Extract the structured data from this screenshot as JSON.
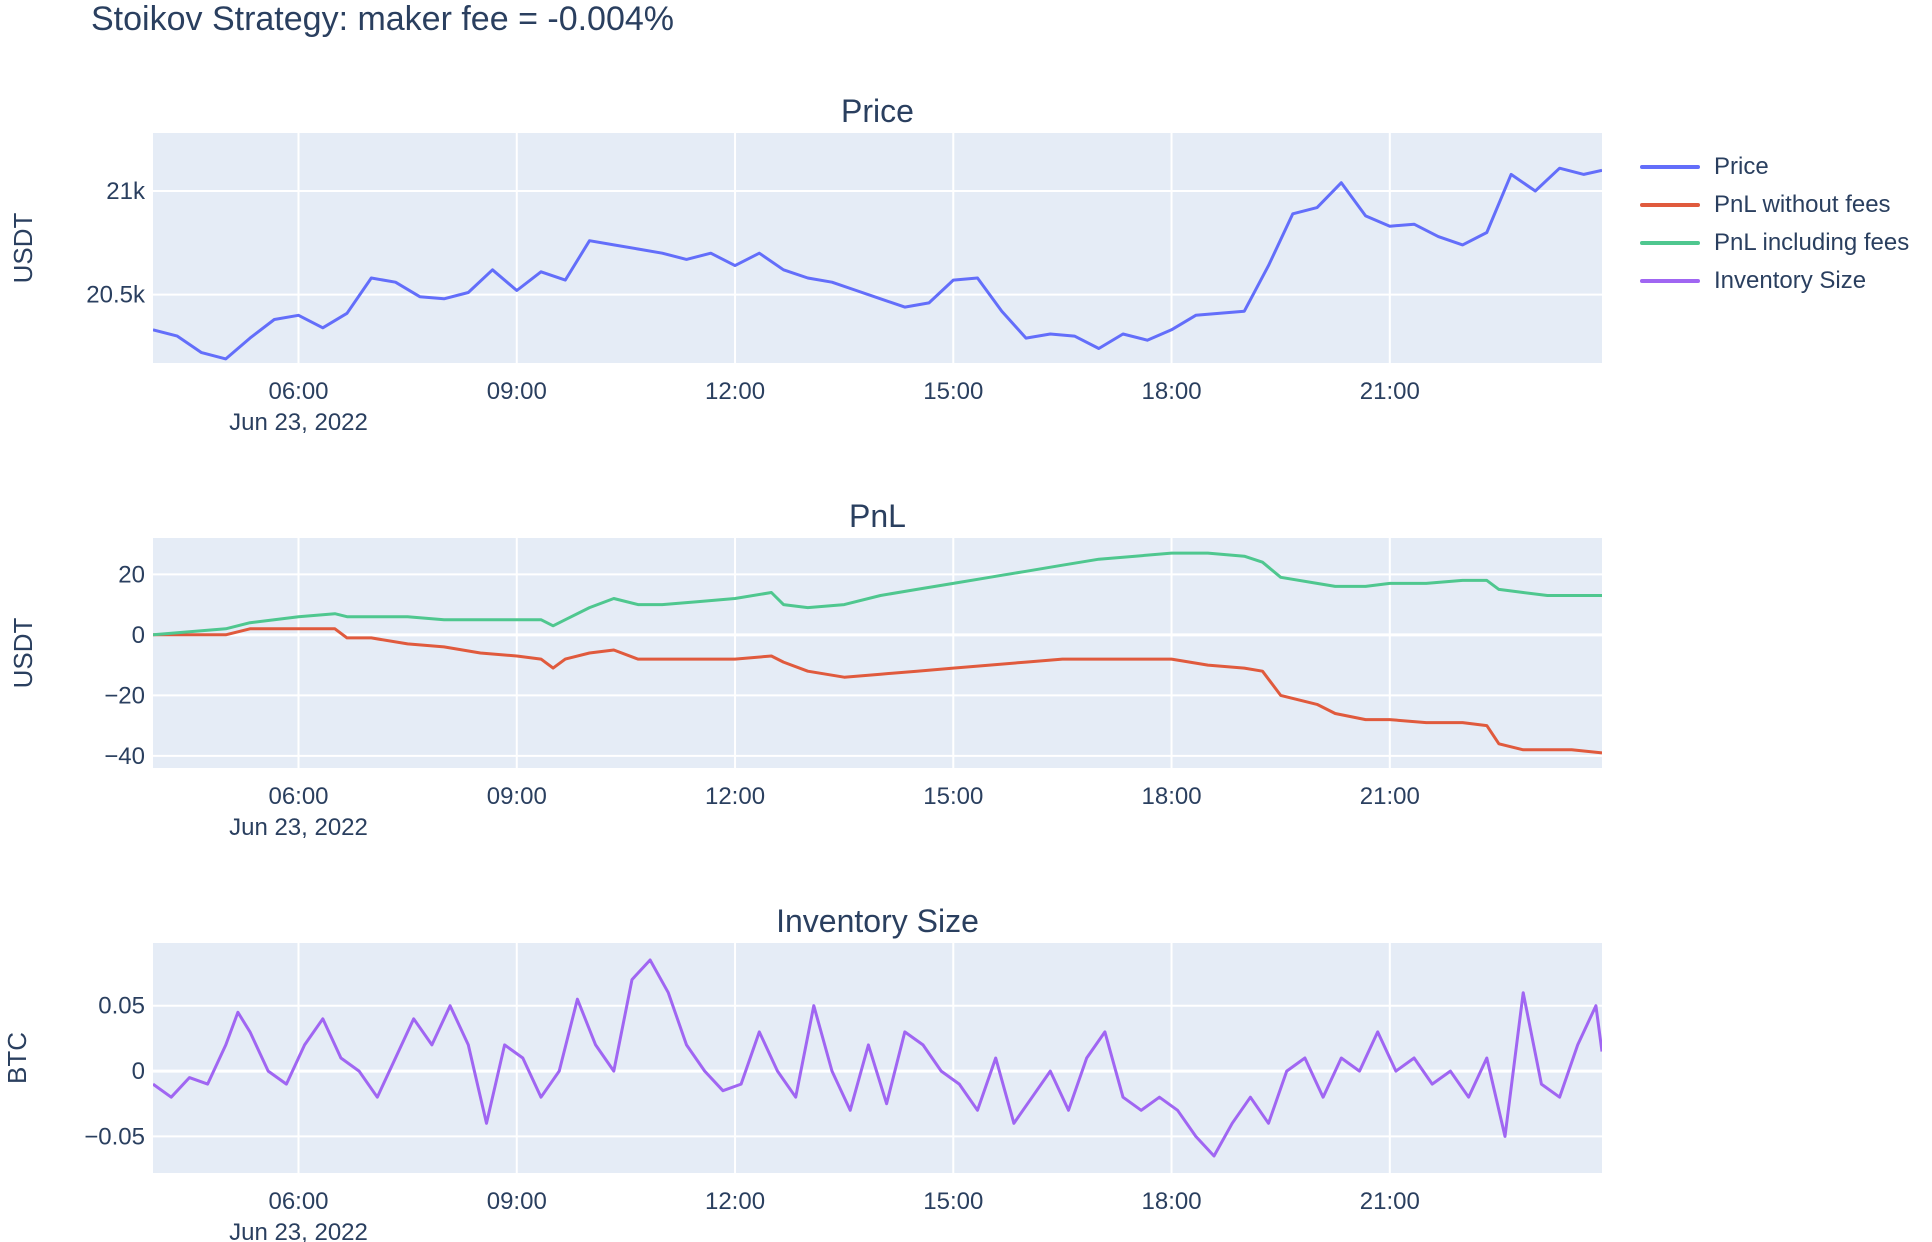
{
  "title": "Stoikov Strategy: maker fee = -0.004%",
  "legend": [
    {
      "name": "Price",
      "color": "#636efa"
    },
    {
      "name": "PnL without fees",
      "color": "#e05a3d"
    },
    {
      "name": "PnL including fees",
      "color": "#4fc78f"
    },
    {
      "name": "Inventory Size",
      "color": "#a066f2"
    }
  ],
  "chart_data": [
    {
      "type": "line",
      "title": "Price",
      "ylabel": "USDT",
      "xlim": [
        "2022-06-23 04:00",
        "2022-06-23 23:55"
      ],
      "ylim": [
        20170,
        21280
      ],
      "xticks": [
        "06:00",
        "09:00",
        "12:00",
        "15:00",
        "18:00",
        "21:00"
      ],
      "xtick_date": "Jun 23, 2022",
      "yticks": [
        {
          "value": 20500,
          "label": "20.5k"
        },
        {
          "value": 21000,
          "label": "21k"
        }
      ],
      "series": [
        {
          "name": "Price",
          "color": "#636efa",
          "x": [
            "04:00",
            "04:20",
            "04:40",
            "05:00",
            "05:20",
            "05:40",
            "06:00",
            "06:20",
            "06:40",
            "07:00",
            "07:20",
            "07:40",
            "08:00",
            "08:20",
            "08:40",
            "09:00",
            "09:20",
            "09:40",
            "10:00",
            "10:20",
            "10:40",
            "11:00",
            "11:20",
            "11:40",
            "12:00",
            "12:20",
            "12:40",
            "13:00",
            "13:20",
            "13:40",
            "14:00",
            "14:20",
            "14:40",
            "15:00",
            "15:20",
            "15:40",
            "16:00",
            "16:20",
            "16:40",
            "17:00",
            "17:20",
            "17:40",
            "18:00",
            "18:20",
            "18:40",
            "19:00",
            "19:20",
            "19:40",
            "20:00",
            "20:20",
            "20:40",
            "21:00",
            "21:20",
            "21:40",
            "22:00",
            "22:20",
            "22:40",
            "23:00",
            "23:20",
            "23:40",
            "23:55"
          ],
          "y": [
            20330,
            20300,
            20220,
            20190,
            20290,
            20380,
            20400,
            20340,
            20410,
            20580,
            20560,
            20490,
            20480,
            20510,
            20620,
            20520,
            20610,
            20570,
            20760,
            20740,
            20720,
            20700,
            20670,
            20700,
            20640,
            20700,
            20620,
            20580,
            20560,
            20520,
            20480,
            20440,
            20460,
            20570,
            20580,
            20420,
            20290,
            20310,
            20300,
            20240,
            20310,
            20280,
            20330,
            20400,
            20410,
            20420,
            20640,
            20890,
            20920,
            21040,
            20880,
            20830,
            20840,
            20780,
            20740,
            20800,
            21080,
            21000,
            21110,
            21080,
            21100
          ]
        }
      ]
    },
    {
      "type": "line",
      "title": "PnL",
      "ylabel": "USDT",
      "xlim": [
        "2022-06-23 04:00",
        "2022-06-23 23:55"
      ],
      "ylim": [
        -44,
        32
      ],
      "xticks": [
        "06:00",
        "09:00",
        "12:00",
        "15:00",
        "18:00",
        "21:00"
      ],
      "xtick_date": "Jun 23, 2022",
      "yticks": [
        {
          "value": 20,
          "label": "20"
        },
        {
          "value": 0,
          "label": "0"
        },
        {
          "value": -20,
          "label": "−20"
        },
        {
          "value": -40,
          "label": "−40"
        }
      ],
      "series": [
        {
          "name": "PnL without fees",
          "color": "#e05a3d",
          "x": [
            "04:00",
            "04:30",
            "05:00",
            "05:20",
            "05:40",
            "06:00",
            "06:30",
            "06:40",
            "07:00",
            "07:30",
            "08:00",
            "08:30",
            "09:00",
            "09:20",
            "09:30",
            "09:40",
            "10:00",
            "10:20",
            "10:40",
            "11:00",
            "11:30",
            "12:00",
            "12:30",
            "12:40",
            "13:00",
            "13:30",
            "14:00",
            "14:30",
            "15:00",
            "15:30",
            "16:00",
            "16:30",
            "17:00",
            "17:30",
            "18:00",
            "18:30",
            "19:00",
            "19:15",
            "19:30",
            "20:00",
            "20:15",
            "20:40",
            "21:00",
            "21:30",
            "22:00",
            "22:20",
            "22:30",
            "22:50",
            "23:10",
            "23:30",
            "23:55"
          ],
          "y": [
            0,
            0,
            0,
            2,
            2,
            2,
            2,
            -1,
            -1,
            -3,
            -4,
            -6,
            -7,
            -8,
            -11,
            -8,
            -6,
            -5,
            -8,
            -8,
            -8,
            -8,
            -7,
            -9,
            -12,
            -14,
            -13,
            -12,
            -11,
            -10,
            -9,
            -8,
            -8,
            -8,
            -8,
            -10,
            -11,
            -12,
            -20,
            -23,
            -26,
            -28,
            -28,
            -29,
            -29,
            -30,
            -36,
            -38,
            -38,
            -38,
            -39
          ]
        },
        {
          "name": "PnL including fees",
          "color": "#4fc78f",
          "x": [
            "04:00",
            "04:30",
            "05:00",
            "05:20",
            "05:40",
            "06:00",
            "06:30",
            "06:40",
            "07:00",
            "07:30",
            "08:00",
            "08:30",
            "09:00",
            "09:20",
            "09:30",
            "09:40",
            "10:00",
            "10:20",
            "10:40",
            "11:00",
            "11:30",
            "12:00",
            "12:30",
            "12:40",
            "13:00",
            "13:30",
            "14:00",
            "14:30",
            "15:00",
            "15:30",
            "16:00",
            "16:30",
            "17:00",
            "17:30",
            "18:00",
            "18:30",
            "19:00",
            "19:15",
            "19:30",
            "20:00",
            "20:15",
            "20:40",
            "21:00",
            "21:30",
            "22:00",
            "22:20",
            "22:30",
            "22:50",
            "23:10",
            "23:30",
            "23:55"
          ],
          "y": [
            0,
            1,
            2,
            4,
            5,
            6,
            7,
            6,
            6,
            6,
            5,
            5,
            5,
            5,
            3,
            5,
            9,
            12,
            10,
            10,
            11,
            12,
            14,
            10,
            9,
            10,
            13,
            15,
            17,
            19,
            21,
            23,
            25,
            26,
            27,
            27,
            26,
            24,
            19,
            17,
            16,
            16,
            17,
            17,
            18,
            18,
            15,
            14,
            13,
            13,
            13
          ]
        }
      ]
    },
    {
      "type": "line",
      "title": "Inventory Size",
      "ylabel": "BTC",
      "xlim": [
        "2022-06-23 04:00",
        "2022-06-23 23:55"
      ],
      "ylim": [
        -0.078,
        0.098
      ],
      "xticks": [
        "06:00",
        "09:00",
        "12:00",
        "15:00",
        "18:00",
        "21:00"
      ],
      "xtick_date": "Jun 23, 2022",
      "yticks": [
        {
          "value": 0.05,
          "label": "0.05"
        },
        {
          "value": 0,
          "label": "0"
        },
        {
          "value": -0.05,
          "label": "−0.05"
        }
      ],
      "series": [
        {
          "name": "Inventory Size",
          "color": "#a066f2",
          "x": [
            "04:00",
            "04:15",
            "04:30",
            "04:45",
            "05:00",
            "05:10",
            "05:20",
            "05:35",
            "05:50",
            "06:05",
            "06:20",
            "06:35",
            "06:50",
            "07:05",
            "07:20",
            "07:35",
            "07:50",
            "08:05",
            "08:20",
            "08:35",
            "08:50",
            "09:05",
            "09:20",
            "09:35",
            "09:50",
            "10:05",
            "10:20",
            "10:35",
            "10:50",
            "11:05",
            "11:20",
            "11:35",
            "11:50",
            "12:05",
            "12:20",
            "12:35",
            "12:50",
            "13:05",
            "13:20",
            "13:35",
            "13:50",
            "14:05",
            "14:20",
            "14:35",
            "14:50",
            "15:05",
            "15:20",
            "15:35",
            "15:50",
            "16:05",
            "16:20",
            "16:35",
            "16:50",
            "17:05",
            "17:20",
            "17:35",
            "17:50",
            "18:05",
            "18:20",
            "18:35",
            "18:50",
            "19:05",
            "19:20",
            "19:35",
            "19:50",
            "20:05",
            "20:20",
            "20:35",
            "20:50",
            "21:05",
            "21:20",
            "21:35",
            "21:50",
            "22:05",
            "22:20",
            "22:35",
            "22:50",
            "23:05",
            "23:20",
            "23:35",
            "23:50",
            "23:55"
          ],
          "y": [
            -0.01,
            -0.02,
            -0.005,
            -0.01,
            0.02,
            0.045,
            0.03,
            0.0,
            -0.01,
            0.02,
            0.04,
            0.01,
            0.0,
            -0.02,
            0.01,
            0.04,
            0.02,
            0.05,
            0.02,
            -0.04,
            0.02,
            0.01,
            -0.02,
            0.0,
            0.055,
            0.02,
            0.0,
            0.07,
            0.085,
            0.06,
            0.02,
            0.0,
            -0.015,
            -0.01,
            0.03,
            0.0,
            -0.02,
            0.05,
            0.0,
            -0.03,
            0.02,
            -0.025,
            0.03,
            0.02,
            0.0,
            -0.01,
            -0.03,
            0.01,
            -0.04,
            -0.02,
            0.0,
            -0.03,
            0.01,
            0.03,
            -0.02,
            -0.03,
            -0.02,
            -0.03,
            -0.05,
            -0.065,
            -0.04,
            -0.02,
            -0.04,
            0.0,
            0.01,
            -0.02,
            0.01,
            0.0,
            0.03,
            0.0,
            0.01,
            -0.01,
            0.0,
            -0.02,
            0.01,
            -0.05,
            0.06,
            -0.01,
            -0.02,
            0.02,
            0.05,
            0.015
          ]
        }
      ]
    }
  ]
}
